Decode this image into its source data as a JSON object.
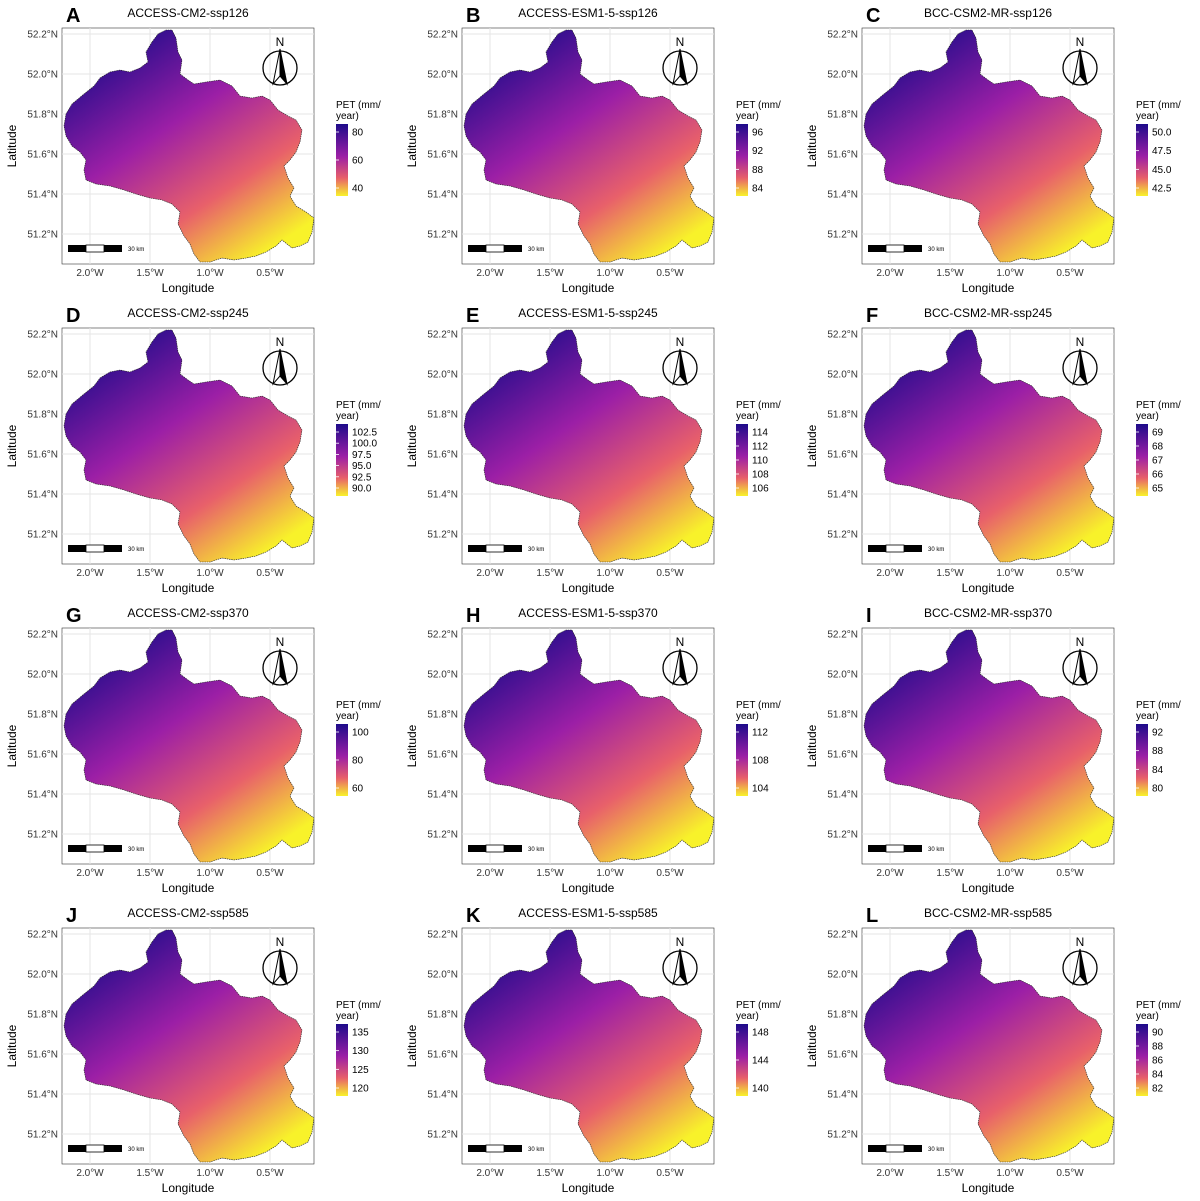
{
  "x_axis_label": "Longitude",
  "y_axis_label": "Latitude",
  "lon_ticks": [
    "2.0°W",
    "1.5°W",
    "1.0°W",
    "0.5°W"
  ],
  "lat_ticks": [
    "52.2°N",
    "52.0°N",
    "51.8°N",
    "51.6°N",
    "51.4°N",
    "51.2°N"
  ],
  "legend_title": [
    "PET (mm/",
    "year)"
  ],
  "north_label": "N",
  "scale_bar_label": "30 km",
  "colors": {
    "high": "#1d0b8a",
    "mid": "#9c1fa6",
    "mid2": "#e8606a",
    "low": "#f8f22a"
  },
  "chart_data": [
    {
      "type": "heatmap",
      "letter": "A",
      "title": "ACCESS-CM2-ssp126",
      "legend_ticks": [
        "80",
        "60",
        "40"
      ],
      "xlabel": "Longitude",
      "ylabel": "Latitude"
    },
    {
      "type": "heatmap",
      "letter": "B",
      "title": "ACCESS-ESM1-5-ssp126",
      "legend_ticks": [
        "96",
        "92",
        "88",
        "84"
      ],
      "xlabel": "Longitude",
      "ylabel": "Latitude"
    },
    {
      "type": "heatmap",
      "letter": "C",
      "title": "BCC-CSM2-MR-ssp126",
      "legend_ticks": [
        "50.0",
        "47.5",
        "45.0",
        "42.5"
      ],
      "xlabel": "Longitude",
      "ylabel": "Latitude"
    },
    {
      "type": "heatmap",
      "letter": "D",
      "title": "ACCESS-CM2-ssp245",
      "legend_ticks": [
        "102.5",
        "100.0",
        "97.5",
        "95.0",
        "92.5",
        "90.0"
      ],
      "xlabel": "Longitude",
      "ylabel": "Latitude"
    },
    {
      "type": "heatmap",
      "letter": "E",
      "title": "ACCESS-ESM1-5-ssp245",
      "legend_ticks": [
        "114",
        "112",
        "110",
        "108",
        "106"
      ],
      "xlabel": "Longitude",
      "ylabel": "Latitude"
    },
    {
      "type": "heatmap",
      "letter": "F",
      "title": "BCC-CSM2-MR-ssp245",
      "legend_ticks": [
        "69",
        "68",
        "67",
        "66",
        "65"
      ],
      "xlabel": "Longitude",
      "ylabel": "Latitude"
    },
    {
      "type": "heatmap",
      "letter": "G",
      "title": "ACCESS-CM2-ssp370",
      "legend_ticks": [
        "100",
        "80",
        "60"
      ],
      "xlabel": "Longitude",
      "ylabel": "Latitude"
    },
    {
      "type": "heatmap",
      "letter": "H",
      "title": "ACCESS-ESM1-5-ssp370",
      "legend_ticks": [
        "112",
        "108",
        "104"
      ],
      "xlabel": "Longitude",
      "ylabel": "Latitude"
    },
    {
      "type": "heatmap",
      "letter": "I",
      "title": "BCC-CSM2-MR-ssp370",
      "legend_ticks": [
        "92",
        "88",
        "84",
        "80"
      ],
      "xlabel": "Longitude",
      "ylabel": "Latitude"
    },
    {
      "type": "heatmap",
      "letter": "J",
      "title": "ACCESS-CM2-ssp585",
      "legend_ticks": [
        "135",
        "130",
        "125",
        "120"
      ],
      "xlabel": "Longitude",
      "ylabel": "Latitude"
    },
    {
      "type": "heatmap",
      "letter": "K",
      "title": "ACCESS-ESM1-5-ssp585",
      "legend_ticks": [
        "148",
        "144",
        "140"
      ],
      "xlabel": "Longitude",
      "ylabel": "Latitude"
    },
    {
      "type": "heatmap",
      "letter": "L",
      "title": "BCC-CSM2-MR-ssp585",
      "legend_ticks": [
        "90",
        "88",
        "86",
        "84",
        "82"
      ],
      "xlabel": "Longitude",
      "ylabel": "Latitude"
    }
  ]
}
